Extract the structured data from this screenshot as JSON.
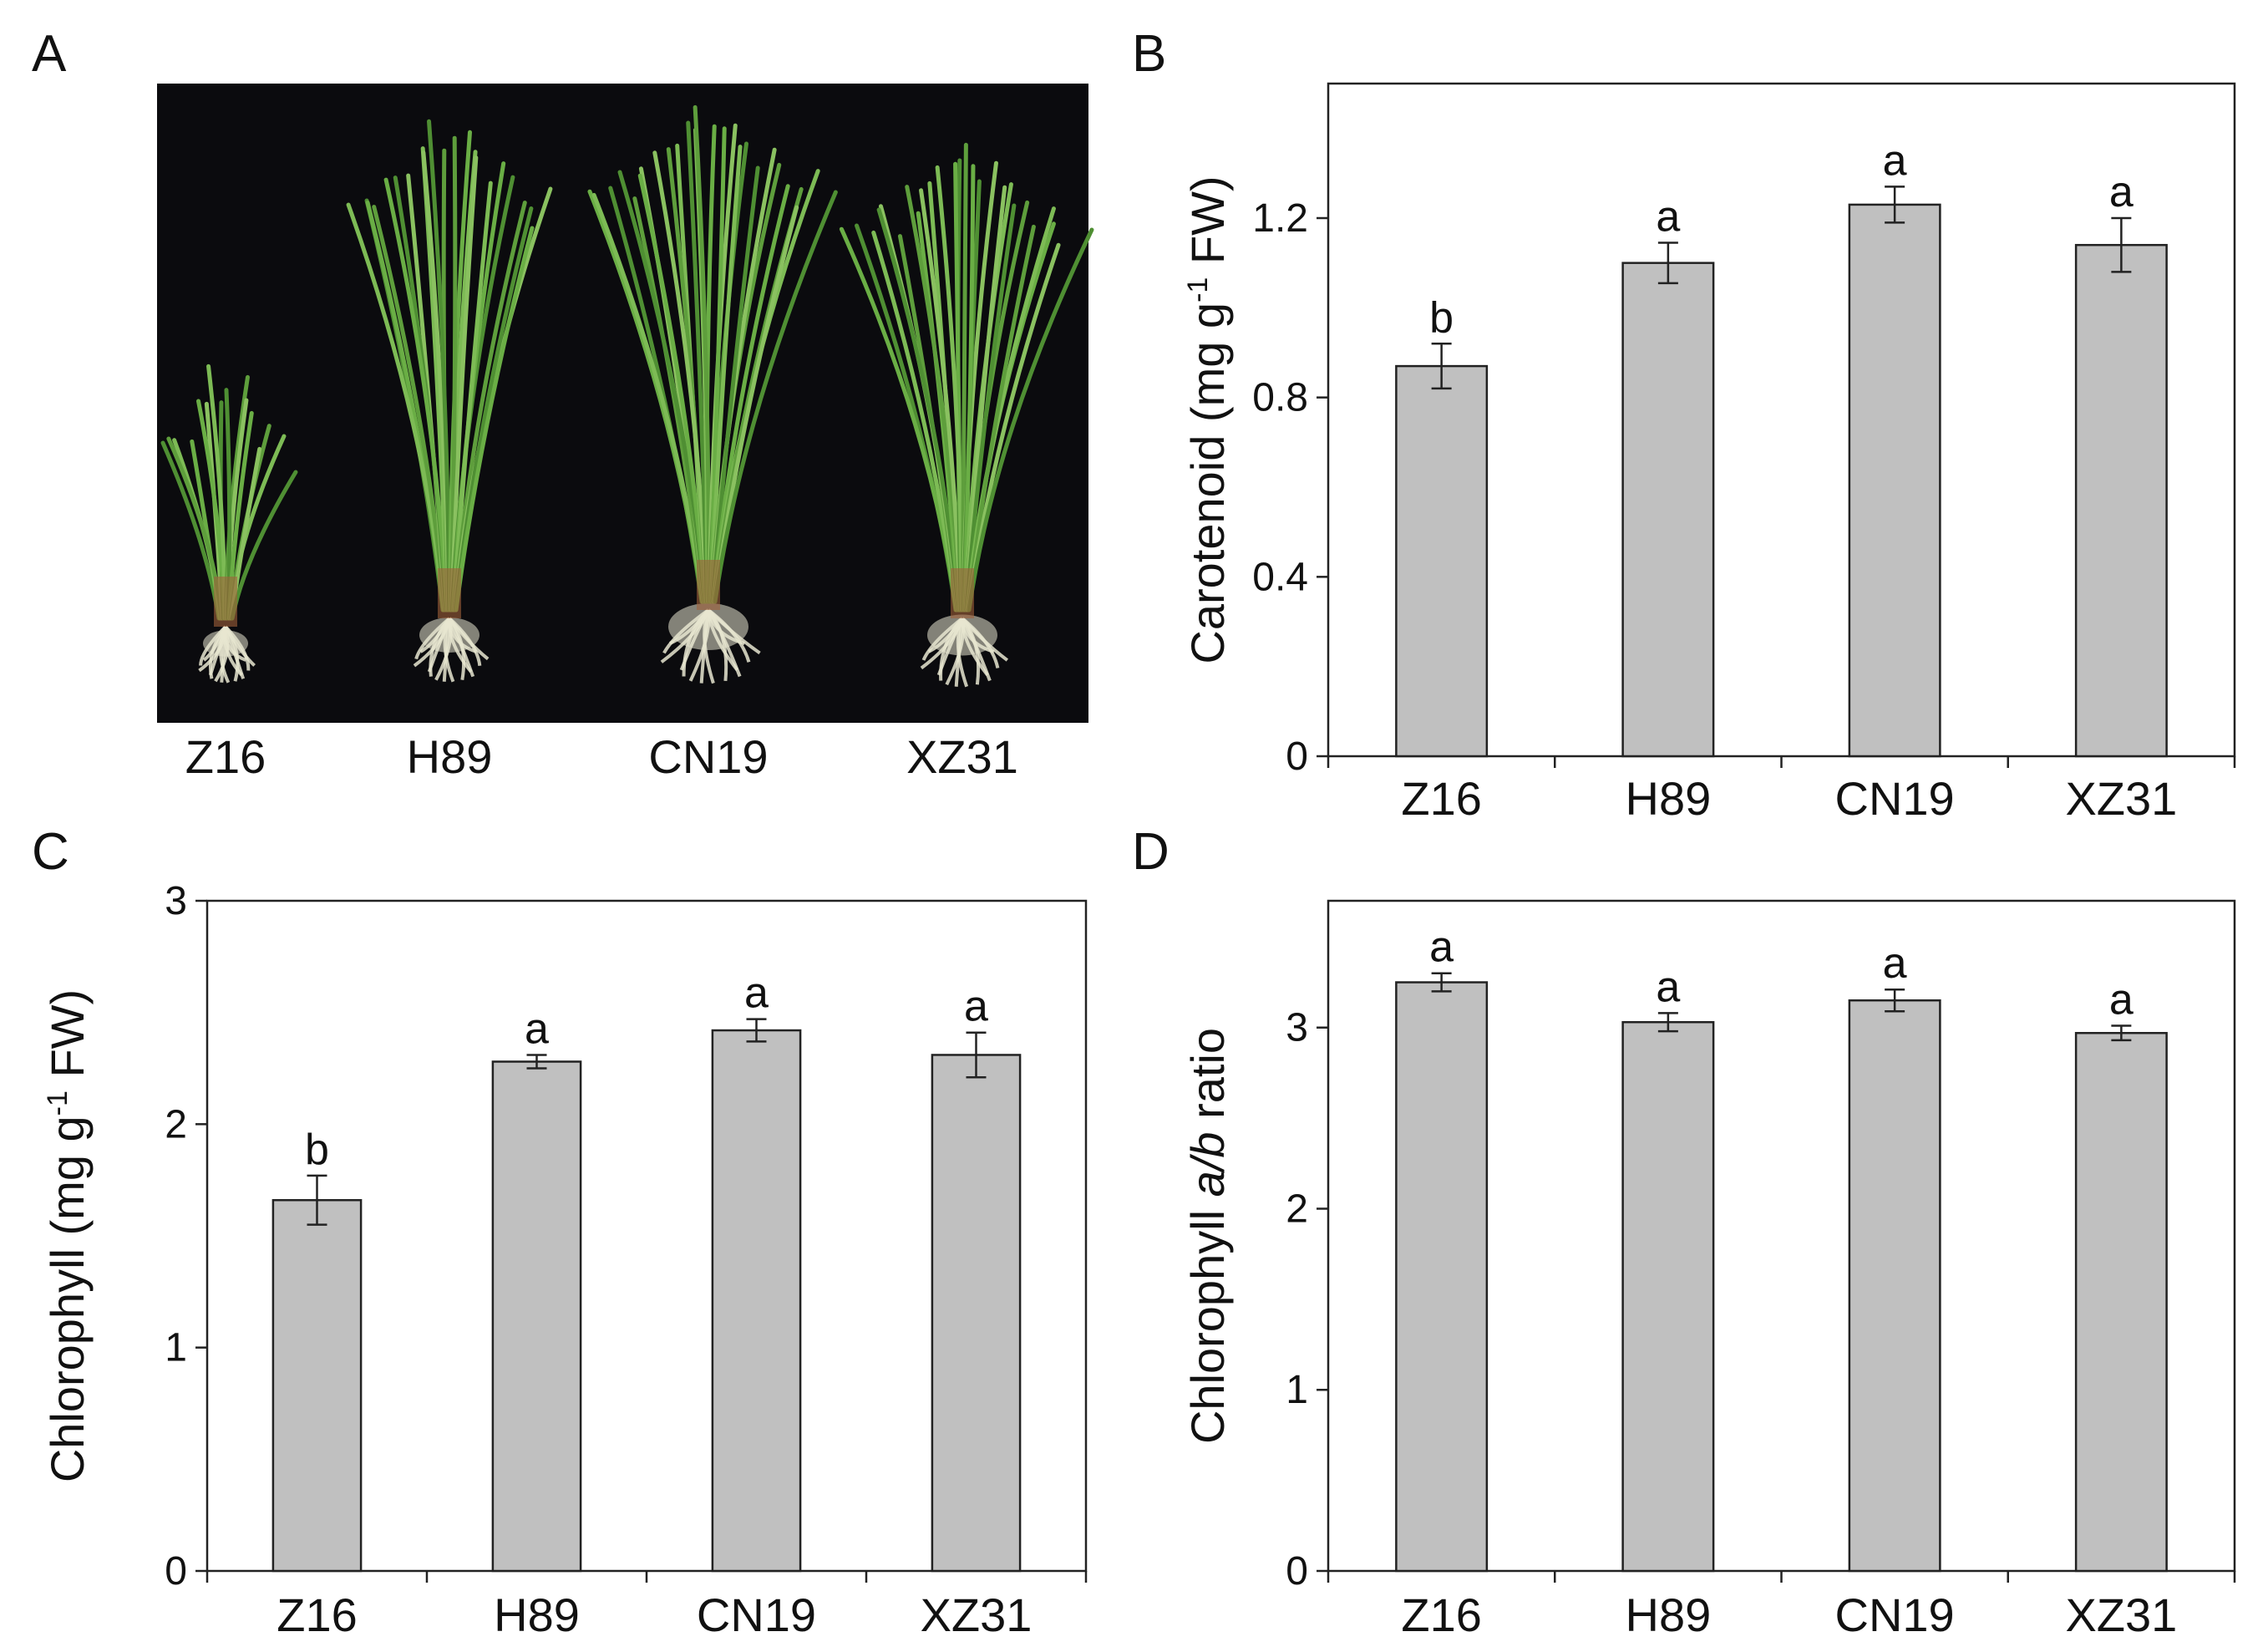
{
  "panels": {
    "a": {
      "letter": "A"
    },
    "b": {
      "letter": "B"
    },
    "c": {
      "letter": "C"
    },
    "d": {
      "letter": "D"
    }
  },
  "photo": {
    "labels": [
      "Z16",
      "H89",
      "CN19",
      "XZ31"
    ],
    "background": "#0b0b0e",
    "leaf_color": "#5e9e3c",
    "root_color": "#e8e6d0"
  },
  "colors": {
    "bar_fill": "#c0c0c0",
    "bar_stroke": "#222222",
    "axis": "#222222"
  },
  "chart_data": [
    {
      "id": "b",
      "type": "bar",
      "categories": [
        "Z16",
        "H89",
        "CN19",
        "XZ31"
      ],
      "values": [
        0.87,
        1.1,
        1.23,
        1.14
      ],
      "errors": [
        0.05,
        0.045,
        0.04,
        0.06
      ],
      "significance": [
        "b",
        "a",
        "a",
        "a"
      ],
      "ylabel_parts": [
        "Carotenoid (mg g",
        "-1",
        " FW)"
      ],
      "ylim": [
        0,
        1.5
      ],
      "yticks": [
        0,
        0.4,
        0.8,
        1.2
      ],
      "ytick_labels": [
        "0",
        "0.4",
        "0.8",
        "1.2"
      ]
    },
    {
      "id": "c",
      "type": "bar",
      "categories": [
        "Z16",
        "H89",
        "CN19",
        "XZ31"
      ],
      "values": [
        1.66,
        2.28,
        2.42,
        2.31
      ],
      "errors": [
        0.11,
        0.03,
        0.05,
        0.1
      ],
      "significance": [
        "b",
        "a",
        "a",
        "a"
      ],
      "ylabel_parts": [
        "Chlorophyll (mg g",
        "-1",
        " FW)"
      ],
      "ylim": [
        0,
        3
      ],
      "yticks": [
        0,
        1,
        2,
        3
      ],
      "ytick_labels": [
        "0",
        "1",
        "2",
        "3"
      ]
    },
    {
      "id": "d",
      "type": "bar",
      "categories": [
        "Z16",
        "H89",
        "CN19",
        "XZ31"
      ],
      "values": [
        3.25,
        3.03,
        3.15,
        2.97
      ],
      "errors": [
        0.05,
        0.05,
        0.06,
        0.04
      ],
      "significance": [
        "a",
        "a",
        "a",
        "a"
      ],
      "ylabel_parts": [
        "Chlorophyll ",
        "a/b",
        " ratio"
      ],
      "ylim": [
        0,
        3.7
      ],
      "yticks": [
        0,
        1,
        2,
        3
      ],
      "ytick_labels": [
        "0",
        "1",
        "2",
        "3"
      ]
    }
  ]
}
